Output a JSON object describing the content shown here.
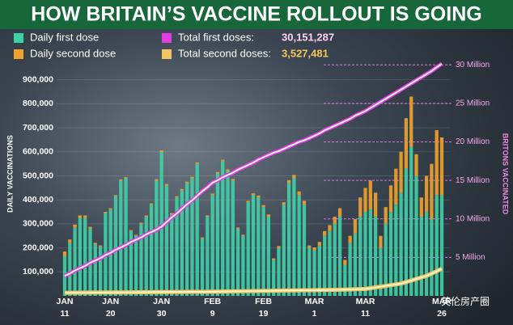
{
  "chart_data": {
    "type": "bar",
    "title": "HOW BRITAIN’S VACCINE ROLLOUT IS GOING",
    "y_label": "DAILY VACCINATIONS",
    "y2_label": "BRITONS VACCINATED",
    "watermark": "英伦房产圈",
    "categories": [
      "JAN 11",
      null,
      null,
      null,
      null,
      null,
      null,
      null,
      null,
      "JAN 20",
      null,
      null,
      null,
      null,
      null,
      null,
      null,
      null,
      null,
      "JAN 30",
      null,
      null,
      null,
      null,
      null,
      null,
      null,
      null,
      null,
      "FEB 9",
      null,
      null,
      null,
      null,
      null,
      null,
      null,
      null,
      null,
      "FEB 19",
      null,
      null,
      null,
      null,
      null,
      null,
      null,
      null,
      null,
      "MAR 1",
      null,
      null,
      null,
      null,
      null,
      null,
      null,
      null,
      null,
      "MAR 11",
      null,
      null,
      null,
      null,
      null,
      null,
      null,
      null,
      null,
      null,
      null,
      null,
      null,
      null,
      "MAR 26"
    ],
    "ylim": [
      0,
      1010000
    ],
    "yticks": [
      {
        "value": 100000,
        "label": "100,000"
      },
      {
        "value": 200000,
        "label": "200,000"
      },
      {
        "value": 300000,
        "label": "300,000"
      },
      {
        "value": 400000,
        "label": "400,000"
      },
      {
        "value": 500000,
        "label": "500,000"
      },
      {
        "value": 600000,
        "label": "600,000"
      },
      {
        "value": 700000,
        "label": "700,000"
      },
      {
        "value": 800000,
        "label": "800,000"
      },
      {
        "value": 900000,
        "label": "900,000"
      }
    ],
    "y2lim": [
      0,
      31.5
    ],
    "y2ticks": [
      {
        "value": 5,
        "label": "5 Million"
      },
      {
        "value": 10,
        "label": "10 Million"
      },
      {
        "value": 15,
        "label": "15 Million"
      },
      {
        "value": 20,
        "label": "20 Million"
      },
      {
        "value": 25,
        "label": "25 Million"
      },
      {
        "value": 30,
        "label": "30 Million"
      }
    ],
    "series": [
      {
        "name": "Daily first dose",
        "color": "#3fd1a6",
        "stack": true,
        "values": [
          165000,
          220000,
          285000,
          325000,
          325000,
          280000,
          215000,
          205000,
          345000,
          360000,
          415000,
          480000,
          490000,
          270000,
          250000,
          300000,
          330000,
          380000,
          480000,
          598000,
          460000,
          340000,
          410000,
          440000,
          470000,
          490000,
          550000,
          240000,
          330000,
          420000,
          510000,
          560000,
          520000,
          480000,
          280000,
          250000,
          390000,
          420000,
          410000,
          370000,
          330000,
          150000,
          200000,
          380000,
          470000,
          490000,
          420000,
          380000,
          200000,
          190000,
          210000,
          250000,
          270000,
          300000,
          330000,
          130000,
          220000,
          260000,
          330000,
          350000,
          360000,
          330000,
          200000,
          300000,
          350000,
          380000,
          430000,
          530000,
          620000,
          500000,
          330000,
          350000,
          320000,
          420000,
          420000
        ]
      },
      {
        "name": "Daily second dose",
        "color": "#f0a22e",
        "stack": true,
        "values": [
          20000,
          15000,
          12000,
          10000,
          10000,
          8000,
          6000,
          5000,
          5000,
          5000,
          5000,
          5000,
          5000,
          4000,
          4000,
          5000,
          5000,
          5000,
          6000,
          8000,
          6000,
          5000,
          5000,
          5000,
          6000,
          6000,
          6000,
          4000,
          5000,
          6000,
          6000,
          7000,
          7000,
          7000,
          5000,
          5000,
          6000,
          7000,
          8000,
          8000,
          9000,
          6000,
          8000,
          10000,
          12000,
          14000,
          15000,
          16000,
          10000,
          12000,
          15000,
          20000,
          25000,
          30000,
          35000,
          20000,
          30000,
          60000,
          80000,
          100000,
          120000,
          100000,
          50000,
          70000,
          110000,
          150000,
          170000,
          210000,
          210000,
          90000,
          80000,
          150000,
          230000,
          270000,
          240000
        ]
      },
      {
        "name": "Total first doses:",
        "color": "#e23ee0",
        "axis": "y2",
        "line_core": "#ffffff",
        "total": {
          "value": 30151287,
          "label": "30,151,287"
        },
        "values": [
          2.6,
          2.9,
          3.3,
          3.6,
          3.9,
          4.3,
          4.6,
          4.9,
          5.3,
          5.6,
          6.0,
          6.3,
          6.6,
          7.0,
          7.3,
          7.6,
          8.0,
          8.3,
          8.6,
          9.0,
          9.6,
          10.2,
          10.7,
          11.3,
          11.9,
          12.4,
          13.0,
          13.6,
          14.1,
          14.7,
          15.0,
          15.4,
          15.7,
          16.0,
          16.4,
          16.7,
          17.0,
          17.3,
          17.7,
          18.0,
          18.3,
          18.6,
          18.8,
          19.1,
          19.4,
          19.7,
          20.0,
          20.2,
          20.5,
          20.8,
          21.1,
          21.5,
          21.8,
          22.1,
          22.4,
          22.7,
          23.0,
          23.4,
          23.7,
          24.0,
          24.4,
          24.8,
          25.2,
          25.6,
          26.0,
          26.4,
          26.8,
          27.2,
          27.6,
          28.0,
          28.4,
          28.8,
          29.2,
          29.7,
          30.15
        ]
      },
      {
        "name": "Total second doses:",
        "color": "#f2c463",
        "axis": "y2",
        "line_core": "#fff7d6",
        "total": {
          "value": 3527481,
          "label": "3,527,481"
        },
        "values": [
          0.4,
          0.41,
          0.41,
          0.42,
          0.42,
          0.43,
          0.43,
          0.44,
          0.44,
          0.45,
          0.45,
          0.45,
          0.46,
          0.46,
          0.47,
          0.47,
          0.48,
          0.48,
          0.49,
          0.49,
          0.5,
          0.5,
          0.51,
          0.51,
          0.52,
          0.52,
          0.53,
          0.53,
          0.54,
          0.55,
          0.56,
          0.57,
          0.58,
          0.59,
          0.6,
          0.61,
          0.62,
          0.63,
          0.64,
          0.65,
          0.66,
          0.67,
          0.68,
          0.69,
          0.7,
          0.71,
          0.72,
          0.73,
          0.74,
          0.75,
          0.76,
          0.77,
          0.78,
          0.79,
          0.8,
          0.82,
          0.84,
          0.86,
          0.88,
          0.9,
          1.0,
          1.1,
          1.2,
          1.3,
          1.4,
          1.5,
          1.6,
          1.8,
          2.0,
          2.2,
          2.4,
          2.6,
          2.9,
          3.2,
          3.53
        ]
      }
    ],
    "grid": true
  }
}
